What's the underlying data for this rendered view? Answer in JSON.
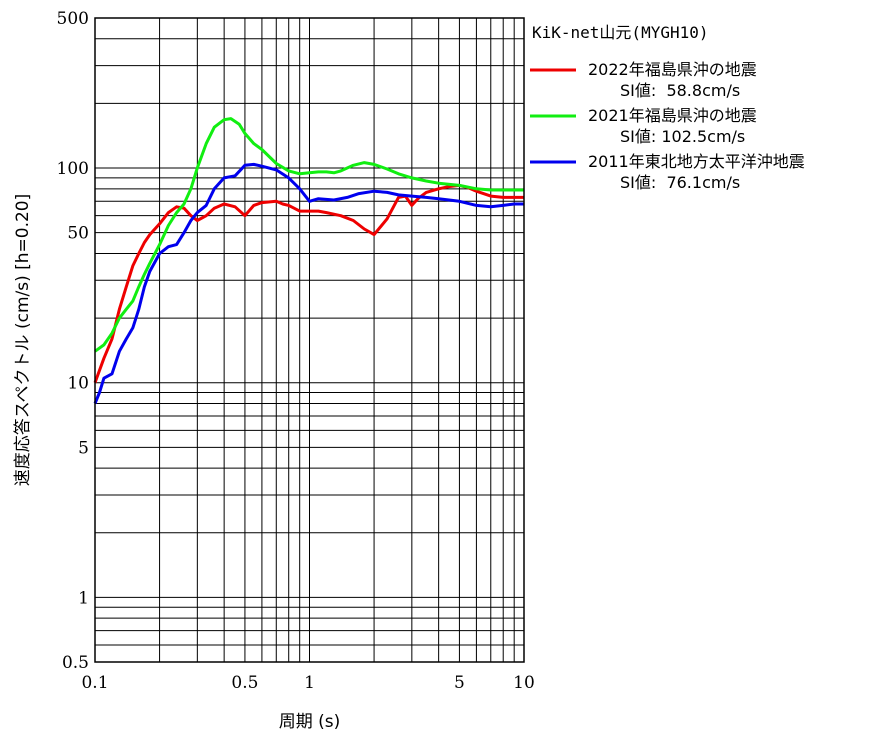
{
  "chart_data": {
    "type": "line",
    "title": "",
    "xlabel": "周期 (s)",
    "ylabel": "速度応答スペクトル (cm/s) [h=0.20]",
    "xscale": "log",
    "yscale": "log",
    "xlim": [
      0.1,
      10
    ],
    "ylim": [
      0.5,
      500
    ],
    "grid": true,
    "legend_position": "right",
    "station": "KiK-net山元(MYGH10)",
    "x_ticks": [
      {
        "value": 0.1,
        "label": "0.1"
      },
      {
        "value": 0.5,
        "label": "0.5"
      },
      {
        "value": 1,
        "label": "1"
      },
      {
        "value": 5,
        "label": "5"
      },
      {
        "value": 10,
        "label": "10"
      }
    ],
    "y_ticks": [
      {
        "value": 0.5,
        "label": "0.5"
      },
      {
        "value": 1,
        "label": "1"
      },
      {
        "value": 5,
        "label": "5"
      },
      {
        "value": 10,
        "label": "10"
      },
      {
        "value": 50,
        "label": "50"
      },
      {
        "value": 100,
        "label": "100"
      },
      {
        "value": 500,
        "label": "500"
      }
    ],
    "series": [
      {
        "name": "2022年福島県沖の地震",
        "si_label": "SI値:  58.8cm/s",
        "color": "#ee0000",
        "points": [
          [
            0.1,
            10
          ],
          [
            0.11,
            13
          ],
          [
            0.12,
            16
          ],
          [
            0.13,
            22
          ],
          [
            0.14,
            28
          ],
          [
            0.15,
            35
          ],
          [
            0.16,
            40
          ],
          [
            0.17,
            45
          ],
          [
            0.18,
            49
          ],
          [
            0.2,
            55
          ],
          [
            0.22,
            62
          ],
          [
            0.24,
            66
          ],
          [
            0.26,
            65
          ],
          [
            0.28,
            60
          ],
          [
            0.3,
            57
          ],
          [
            0.33,
            60
          ],
          [
            0.36,
            65
          ],
          [
            0.4,
            68
          ],
          [
            0.45,
            66
          ],
          [
            0.5,
            60
          ],
          [
            0.55,
            67
          ],
          [
            0.6,
            69
          ],
          [
            0.7,
            70
          ],
          [
            0.75,
            68
          ],
          [
            0.8,
            67
          ],
          [
            0.9,
            63
          ],
          [
            1.0,
            63
          ],
          [
            1.1,
            63
          ],
          [
            1.2,
            62
          ],
          [
            1.4,
            60
          ],
          [
            1.6,
            57
          ],
          [
            1.8,
            52
          ],
          [
            2.0,
            49
          ],
          [
            2.3,
            58
          ],
          [
            2.6,
            73
          ],
          [
            2.8,
            74
          ],
          [
            3.0,
            67
          ],
          [
            3.2,
            72
          ],
          [
            3.5,
            77
          ],
          [
            4.0,
            80
          ],
          [
            4.5,
            82
          ],
          [
            5.0,
            83
          ],
          [
            5.5,
            81
          ],
          [
            6.0,
            78
          ],
          [
            7.0,
            74
          ],
          [
            8.0,
            73
          ],
          [
            9.0,
            73
          ],
          [
            10,
            73
          ]
        ]
      },
      {
        "name": "2021年福島県沖の地震",
        "si_label": "SI値: 102.5cm/s",
        "color": "#11ee11",
        "points": [
          [
            0.1,
            14
          ],
          [
            0.11,
            15
          ],
          [
            0.12,
            17
          ],
          [
            0.13,
            20
          ],
          [
            0.14,
            22
          ],
          [
            0.15,
            24
          ],
          [
            0.16,
            28
          ],
          [
            0.17,
            32
          ],
          [
            0.18,
            36
          ],
          [
            0.2,
            44
          ],
          [
            0.22,
            54
          ],
          [
            0.24,
            62
          ],
          [
            0.26,
            68
          ],
          [
            0.28,
            80
          ],
          [
            0.3,
            100
          ],
          [
            0.33,
            130
          ],
          [
            0.36,
            155
          ],
          [
            0.4,
            168
          ],
          [
            0.43,
            170
          ],
          [
            0.47,
            160
          ],
          [
            0.5,
            145
          ],
          [
            0.55,
            130
          ],
          [
            0.6,
            122
          ],
          [
            0.7,
            105
          ],
          [
            0.8,
            97
          ],
          [
            0.9,
            94
          ],
          [
            1.0,
            95
          ],
          [
            1.1,
            96
          ],
          [
            1.2,
            96
          ],
          [
            1.3,
            95
          ],
          [
            1.4,
            97
          ],
          [
            1.6,
            103
          ],
          [
            1.8,
            106
          ],
          [
            2.0,
            104
          ],
          [
            2.3,
            99
          ],
          [
            2.6,
            94
          ],
          [
            3.0,
            90
          ],
          [
            3.5,
            87
          ],
          [
            4.0,
            85
          ],
          [
            5.0,
            83
          ],
          [
            6.0,
            80
          ],
          [
            7.0,
            79
          ],
          [
            8.0,
            79
          ],
          [
            9.0,
            79
          ],
          [
            10,
            79
          ]
        ]
      },
      {
        "name": "2011年東北地方太平洋沖地震",
        "si_label": "SI値:  76.1cm/s",
        "color": "#0000ee",
        "points": [
          [
            0.1,
            8
          ],
          [
            0.105,
            9
          ],
          [
            0.11,
            10.5
          ],
          [
            0.12,
            11
          ],
          [
            0.13,
            14
          ],
          [
            0.14,
            16
          ],
          [
            0.15,
            18
          ],
          [
            0.16,
            22
          ],
          [
            0.17,
            28
          ],
          [
            0.18,
            33
          ],
          [
            0.2,
            40
          ],
          [
            0.22,
            43
          ],
          [
            0.24,
            44
          ],
          [
            0.26,
            50
          ],
          [
            0.28,
            57
          ],
          [
            0.3,
            62
          ],
          [
            0.33,
            67
          ],
          [
            0.36,
            80
          ],
          [
            0.4,
            90
          ],
          [
            0.45,
            92
          ],
          [
            0.5,
            103
          ],
          [
            0.55,
            104
          ],
          [
            0.6,
            102
          ],
          [
            0.7,
            98
          ],
          [
            0.8,
            90
          ],
          [
            0.9,
            80
          ],
          [
            1.0,
            70
          ],
          [
            1.1,
            72
          ],
          [
            1.3,
            71
          ],
          [
            1.5,
            73
          ],
          [
            1.7,
            76
          ],
          [
            2.0,
            78
          ],
          [
            2.3,
            77
          ],
          [
            2.6,
            75
          ],
          [
            3.0,
            74
          ],
          [
            3.5,
            73
          ],
          [
            4.0,
            72
          ],
          [
            5.0,
            70
          ],
          [
            6.0,
            67
          ],
          [
            7.0,
            66
          ],
          [
            8.0,
            67
          ],
          [
            9.0,
            68
          ],
          [
            10,
            68
          ]
        ]
      }
    ]
  }
}
